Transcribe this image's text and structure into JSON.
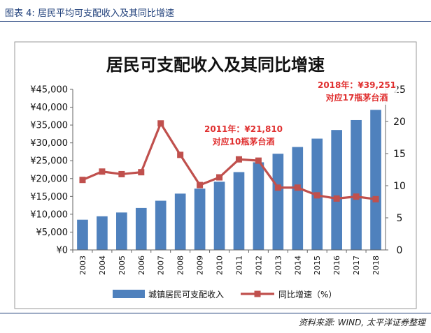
{
  "figure": {
    "label": "图表 4:",
    "title": "居民平均可支配收入及其同比增速",
    "source": "资料来源: WIND, 太平洋证券整理"
  },
  "chart_data": {
    "type": "bar+line",
    "title": "居民可支配收入及其同比增速",
    "categories": [
      "2003",
      "2004",
      "2005",
      "2006",
      "2007",
      "2008",
      "2009",
      "2010",
      "2011",
      "2012",
      "2013",
      "2014",
      "2015",
      "2016",
      "2017",
      "2018"
    ],
    "series": [
      {
        "name": "城镇居民可支配收入",
        "type": "bar",
        "axis": "left",
        "color": "#4f81bd",
        "values": [
          8472,
          9422,
          10493,
          11759,
          13786,
          15781,
          17175,
          19109,
          21810,
          24565,
          26955,
          28844,
          31195,
          33616,
          36396,
          39251
        ]
      },
      {
        "name": "同比增速（%）",
        "type": "line",
        "axis": "right",
        "color": "#c0504d",
        "values": [
          10.9,
          12.2,
          11.8,
          12.1,
          19.7,
          14.8,
          10.1,
          11.3,
          14.1,
          13.9,
          9.7,
          9.7,
          8.5,
          8.0,
          8.3,
          7.9
        ]
      }
    ],
    "y_left": {
      "min": 0,
      "max": 45000,
      "step": 5000,
      "tick_labels": [
        "¥0",
        "¥5,000",
        "¥10,000",
        "¥15,000",
        "¥20,000",
        "¥25,000",
        "¥30,000",
        "¥35,000",
        "¥40,000",
        "¥45,000"
      ]
    },
    "y_right": {
      "min": 0,
      "max": 25,
      "step": 5,
      "tick_labels": [
        "0",
        "5",
        "10",
        "15",
        "20",
        "25"
      ]
    },
    "annotations": [
      {
        "category": "2011",
        "line1": "2011年：¥21,810",
        "line2": "对应10瓶茅台酒"
      },
      {
        "category": "2018",
        "line1": "2018年：¥39,251",
        "line2": "对应17瓶茅台酒"
      }
    ],
    "legend": {
      "position": "bottom",
      "items": [
        "城镇居民可支配收入",
        "同比增速（%）"
      ]
    }
  }
}
